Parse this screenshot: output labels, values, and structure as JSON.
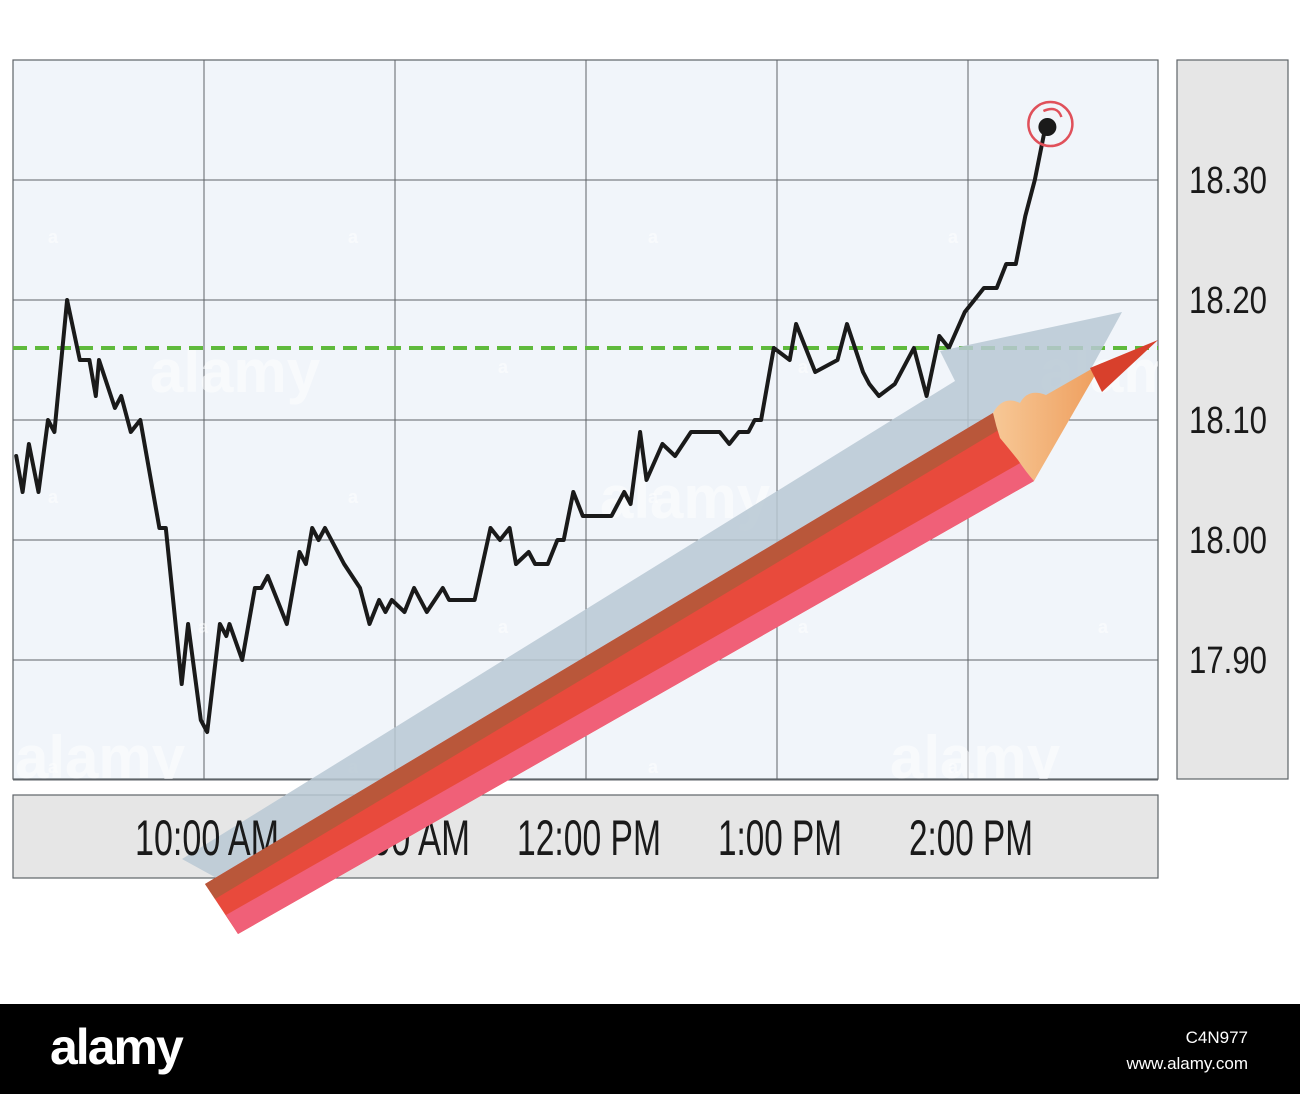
{
  "chart_data": {
    "type": "line",
    "title": "",
    "xlabel": "",
    "ylabel": "",
    "x_tick_labels": [
      "10:00 AM",
      "11:00 AM",
      "12:00 PM",
      "1:00 PM",
      "2:00 PM"
    ],
    "y_tick_labels": [
      "18.30",
      "18.20",
      "18.10",
      "18.00",
      "17.90"
    ],
    "y_tick_values": [
      18.3,
      18.2,
      18.1,
      18.0,
      17.9
    ],
    "ylim": [
      17.83,
      18.43
    ],
    "x_range": [
      "9:00 AM",
      "3:00 PM"
    ],
    "grid": true,
    "reference_line": {
      "value": 18.16,
      "style": "dashed",
      "color": "#5fba3c"
    },
    "series": [
      {
        "points": [
          [
            "9:01",
            18.07
          ],
          [
            "9:03",
            18.04
          ],
          [
            "9:05",
            18.08
          ],
          [
            "9:08",
            18.04
          ],
          [
            "9:11",
            18.1
          ],
          [
            "9:13",
            18.09
          ],
          [
            "9:17",
            18.2
          ],
          [
            "9:21",
            18.15
          ],
          [
            "9:24",
            18.15
          ],
          [
            "9:26",
            18.12
          ],
          [
            "9:27",
            18.15
          ],
          [
            "9:32",
            18.11
          ],
          [
            "9:34",
            18.12
          ],
          [
            "9:37",
            18.09
          ],
          [
            "9:40",
            18.1
          ],
          [
            "9:46",
            18.01
          ],
          [
            "9:48",
            18.01
          ],
          [
            "9:53",
            17.88
          ],
          [
            "9:55",
            17.93
          ],
          [
            "9:59",
            17.85
          ],
          [
            "10:01",
            17.84
          ],
          [
            "10:05",
            17.93
          ],
          [
            "10:07",
            17.92
          ],
          [
            "10:08",
            17.93
          ],
          [
            "10:12",
            17.9
          ],
          [
            "10:16",
            17.96
          ],
          [
            "10:18",
            17.96
          ],
          [
            "10:20",
            17.97
          ],
          [
            "10:26",
            17.93
          ],
          [
            "10:30",
            17.99
          ],
          [
            "10:32",
            17.98
          ],
          [
            "10:34",
            18.01
          ],
          [
            "10:36",
            18.0
          ],
          [
            "10:38",
            18.01
          ],
          [
            "10:44",
            17.98
          ],
          [
            "10:49",
            17.96
          ],
          [
            "10:52",
            17.93
          ],
          [
            "10:55",
            17.95
          ],
          [
            "10:57",
            17.94
          ],
          [
            "10:59",
            17.95
          ],
          [
            "11:03",
            17.94
          ],
          [
            "11:06",
            17.96
          ],
          [
            "11:10",
            17.94
          ],
          [
            "11:15",
            17.96
          ],
          [
            "11:17",
            17.95
          ],
          [
            "11:25",
            17.95
          ],
          [
            "11:30",
            18.01
          ],
          [
            "11:33",
            18.0
          ],
          [
            "11:36",
            18.01
          ],
          [
            "11:38",
            17.98
          ],
          [
            "11:42",
            17.99
          ],
          [
            "11:44",
            17.98
          ],
          [
            "11:48",
            17.98
          ],
          [
            "11:51",
            18.0
          ],
          [
            "11:53",
            18.0
          ],
          [
            "11:56",
            18.04
          ],
          [
            "11:59",
            18.02
          ],
          [
            "12:05",
            18.02
          ],
          [
            "12:08",
            18.02
          ],
          [
            "12:12",
            18.04
          ],
          [
            "12:14",
            18.03
          ],
          [
            "12:17",
            18.09
          ],
          [
            "12:19",
            18.05
          ],
          [
            "12:24",
            18.08
          ],
          [
            "12:28",
            18.07
          ],
          [
            "12:33",
            18.09
          ],
          [
            "12:42",
            18.09
          ],
          [
            "12:45",
            18.08
          ],
          [
            "12:48",
            18.09
          ],
          [
            "12:51",
            18.09
          ],
          [
            "12:53",
            18.1
          ],
          [
            "12:55",
            18.1
          ],
          [
            "12:59",
            18.16
          ],
          [
            "13:04",
            18.15
          ],
          [
            "13:06",
            18.18
          ],
          [
            "13:12",
            18.14
          ],
          [
            "13:19",
            18.15
          ],
          [
            "13:22",
            18.18
          ],
          [
            "13:27",
            18.14
          ],
          [
            "13:29",
            18.13
          ],
          [
            "13:32",
            18.12
          ],
          [
            "13:37",
            18.13
          ],
          [
            "13:43",
            18.16
          ],
          [
            "13:47",
            18.12
          ],
          [
            "13:51",
            18.17
          ],
          [
            "13:54",
            18.16
          ],
          [
            "13:59",
            18.19
          ],
          [
            "14:02",
            18.2
          ],
          [
            "14:05",
            18.21
          ],
          [
            "14:09",
            18.21
          ],
          [
            "14:12",
            18.23
          ],
          [
            "14:15",
            18.23
          ],
          [
            "14:18",
            18.27
          ],
          [
            "14:21",
            18.3
          ],
          [
            "14:24",
            18.34
          ]
        ]
      }
    ],
    "highlight_last_point": true
  },
  "watermark": "alamy",
  "footer": {
    "logo": "alamy",
    "image_id": "C4N977",
    "url": "www.alamy.com"
  },
  "colors": {
    "plot_background": "#f1f5fa",
    "grid": "#5e6368",
    "series_line": "#1a1a1a",
    "reference_line": "#5fba3c",
    "axis_panel": "#e6e6e6",
    "trend_arrow": "#b8c8d3",
    "pencil_body": "#e84a3c",
    "pencil_shadow": "#b9573a",
    "pencil_highlight": "#f06078",
    "pencil_wood": "#f3b27a",
    "pencil_tip": "#d8402c",
    "last_point_ring": "#e0505a"
  }
}
